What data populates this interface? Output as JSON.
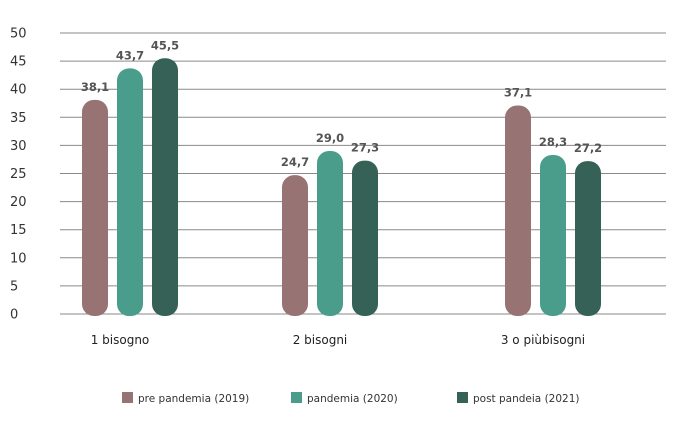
{
  "chart_data": {
    "type": "bar",
    "title": "",
    "xlabel": "",
    "ylabel": "",
    "ylim": [
      0,
      50
    ],
    "yticks": [
      0,
      5,
      10,
      15,
      20,
      25,
      30,
      35,
      40,
      45,
      50
    ],
    "grid": true,
    "legend_position": "bottom",
    "categories": [
      "1 bisogno",
      "2 bisogni",
      "3 o piùbisogni"
    ],
    "series": [
      {
        "name": "pre pandemia (2019)",
        "color": "#977374",
        "values": [
          38.1,
          24.7,
          37.1
        ],
        "labels": [
          "38,1",
          "24,7",
          "37,1"
        ]
      },
      {
        "name": "pandemia (2020)",
        "color": "#4a9c8b",
        "values": [
          43.7,
          29.0,
          28.3
        ],
        "labels": [
          "43,7",
          "29,0",
          "28,3"
        ]
      },
      {
        "name": "post pandeia (2021)",
        "color": "#366156",
        "values": [
          45.5,
          27.3,
          27.2
        ],
        "labels": [
          "45,5",
          "27,3",
          "27,2"
        ]
      }
    ]
  }
}
